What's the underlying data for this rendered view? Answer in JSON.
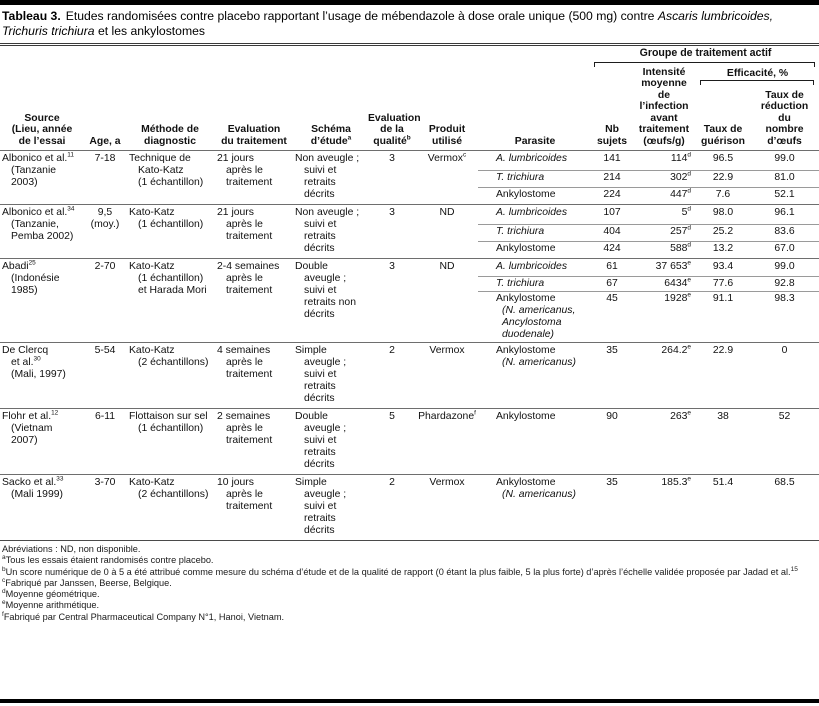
{
  "page": {
    "title_label": "Tableau 3.",
    "title_text": "Etudes randomisées contre placebo rapportant l’usage de mébendazole à dose orale unique (500 mg) contre *Ascaris lumbricoides, Trichuris trichiura* et les ankylostomes"
  },
  "header": {
    "group": "Groupe de traitement actif",
    "efficacite": "Efficacité, %",
    "cols": {
      "source": "Source\n(Lieu, année\nde l’essai",
      "age": "Age, a",
      "methode": "Méthode de\ndiagnostic",
      "evaluation": "Evaluation\ndu traitement",
      "schema": "Schéma\nd’étude^a",
      "qualite": "Evaluation\nde la\nqualité^b",
      "produit": "Produit\nutilisé",
      "parasite": "Parasite",
      "nb": "Nb\nsujets",
      "intensite": "Intensité\nmoyenne\nde\nl’infection\navant\ntraitement\n(œufs/g)",
      "guerison": "Taux de\nguérison",
      "reduction": "Taux de\nréduction\ndu\nnombre\nd’œufs"
    }
  },
  "studies": [
    {
      "source": "Albonico et al.^11\n(Tanzanie\n2003)",
      "age": "7-18",
      "methode": "Technique de\nKato-Katz\n(1 échantillon)",
      "evaluation": "21 jours\naprès le\ntraitement",
      "schema": "Non aveugle ;\nsuivi et\nretraits\ndécrits",
      "qualite": "3",
      "produit": "Vermox^c",
      "rows": [
        {
          "parasite": "*A. lumbricoides*",
          "nb": "141",
          "intensite": "114^d",
          "guerison": "96.5",
          "reduction": "99.0"
        },
        {
          "parasite": "*T. trichiura*",
          "nb": "214",
          "intensite": "302^d",
          "guerison": "22.9",
          "reduction": "81.0"
        },
        {
          "parasite": "Ankylostome",
          "nb": "224",
          "intensite": "447^d",
          "guerison": "7.6",
          "reduction": "52.1"
        }
      ]
    },
    {
      "source": "Albonico et al.^34\n(Tanzanie,\nPemba 2002)",
      "age": "9,5\n(moy.)",
      "methode": "Kato-Katz\n(1 échantillon)",
      "evaluation": "21 jours\naprès le\ntraitement",
      "schema": "Non aveugle ;\nsuivi et\nretraits\ndécrits",
      "qualite": "3",
      "produit": "ND",
      "rows": [
        {
          "parasite": "*A. lumbricoides*",
          "nb": "107",
          "intensite": "5^d",
          "guerison": "98.0",
          "reduction": "96.1"
        },
        {
          "parasite": "*T. trichiura*",
          "nb": "404",
          "intensite": "257^d",
          "guerison": "25.2",
          "reduction": "83.6"
        },
        {
          "parasite": "Ankylostome",
          "nb": "424",
          "intensite": "588^d",
          "guerison": "13.2",
          "reduction": "67.0"
        }
      ]
    },
    {
      "source": "Abadi^25\n(Indonésie\n1985)",
      "age": "2-70",
      "methode": "Kato-Katz\n(1 échantillon)\net Harada Mori",
      "evaluation": "2-4 semaines\naprès le\ntraitement",
      "schema": "Double\naveugle ;\nsuivi et\nretraits non\ndécrits",
      "qualite": "3",
      "produit": "ND",
      "rows": [
        {
          "parasite": "*A. lumbricoides*",
          "nb": "61",
          "intensite": "37 653^e",
          "guerison": "93.4",
          "reduction": "99.0"
        },
        {
          "parasite": "*T. trichiura*",
          "nb": "67",
          "intensite": "6434^e",
          "guerison": "77.6",
          "reduction": "92.8"
        },
        {
          "parasite": "Ankylostome\n*(N. americanus,*\n*Ancylostoma*\n*duodenale)*",
          "nb": "45",
          "intensite": "1928^e",
          "guerison": "91.1",
          "reduction": "98.3"
        }
      ]
    },
    {
      "source": "De Clercq\net al.^30\n(Mali, 1997)",
      "age": "5-54",
      "methode": "Kato-Katz\n(2 échantillons)",
      "evaluation": "4 semaines\naprès le\ntraitement",
      "schema": "Simple\naveugle ;\nsuivi et\nretraits\ndécrits",
      "qualite": "2",
      "produit": "Vermox",
      "rows": [
        {
          "parasite": "Ankylostome\n*(N. americanus)*",
          "nb": "35",
          "intensite": "264.2^e",
          "guerison": "22.9",
          "reduction": "0"
        }
      ]
    },
    {
      "source": "Flohr et al.^12\n(Vietnam\n2007)",
      "age": "6-11",
      "methode": "Flottaison sur sel\n(1 échantillon)",
      "evaluation": "2 semaines\naprès le\ntraitement",
      "schema": "Double\naveugle ;\nsuivi et\nretraits\ndécrits",
      "qualite": "5",
      "produit": "Phardazone^f",
      "rows": [
        {
          "parasite": "Ankylostome",
          "nb": "90",
          "intensite": "263^e",
          "guerison": "38",
          "reduction": "52"
        }
      ]
    },
    {
      "source": "Sacko et al.^33\n(Mali 1999)",
      "age": "3-70",
      "methode": "Kato-Katz\n(2 échantillons)",
      "evaluation": "10 jours\naprès le\ntraitement",
      "schema": "Simple\naveugle ;\nsuivi et\nretraits\ndécrits",
      "qualite": "2",
      "produit": "Vermox",
      "rows": [
        {
          "parasite": "Ankylostome\n*(N. americanus)*",
          "nb": "35",
          "intensite": "185.3^e",
          "guerison": "51.4",
          "reduction": "68.5"
        }
      ]
    }
  ],
  "footnotes": [
    {
      "marker": "",
      "text": "Abréviations : ND, non disponible."
    },
    {
      "marker": "a",
      "text": "Tous les essais étaient randomisés contre placebo."
    },
    {
      "marker": "b",
      "text": "Un score numérique de 0 à 5 a été attribué comme mesure du schéma d’étude et de la qualité de rapport (0 étant la plus faible, 5 la plus forte) d’après l’échelle validée proposée par Jadad et al.^15"
    },
    {
      "marker": "c",
      "text": "Fabriqué par Janssen, Beerse, Belgique."
    },
    {
      "marker": "d",
      "text": "Moyenne géométrique."
    },
    {
      "marker": "e",
      "text": "Moyenne arithmétique."
    },
    {
      "marker": "f",
      "text": "Fabriqué par Central Pharmaceutical Company N°1, Hanoi, Vietnam."
    }
  ]
}
